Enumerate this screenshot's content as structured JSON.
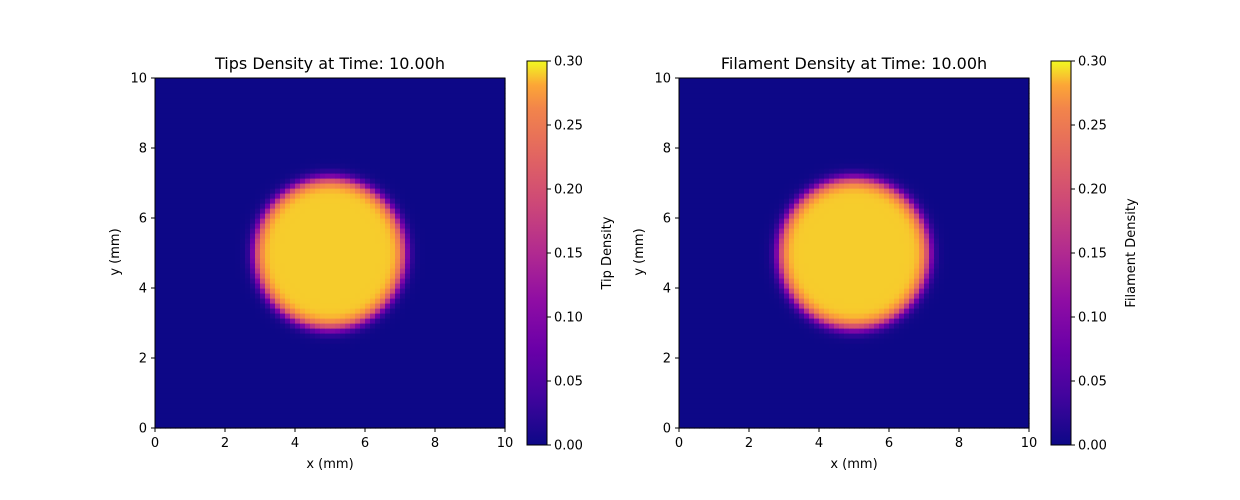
{
  "chart_data": [
    {
      "type": "heatmap",
      "title": "Tips Density at Time: 10.00h",
      "xlabel": "x (mm)",
      "ylabel": "y (mm)",
      "xlim": [
        0,
        10
      ],
      "ylim": [
        0,
        10
      ],
      "xticks": [
        "0",
        "2",
        "4",
        "6",
        "8",
        "10"
      ],
      "yticks": [
        "0",
        "2",
        "4",
        "6",
        "8",
        "10"
      ],
      "colormap": "plasma",
      "field": {
        "shape": "disk",
        "center": [
          5,
          5
        ],
        "radius": 2.15,
        "edge_width": 0.22,
        "inside_value": 0.29,
        "background_value": 0.0
      },
      "colorbar": {
        "label": "Tip Density",
        "range": [
          0,
          0.3
        ],
        "ticks": [
          "0.00",
          "0.05",
          "0.10",
          "0.15",
          "0.20",
          "0.25",
          "0.30"
        ]
      }
    },
    {
      "type": "heatmap",
      "title": "Filament Density at Time: 10.00h",
      "xlabel": "x (mm)",
      "ylabel": "y (mm)",
      "xlim": [
        0,
        10
      ],
      "ylim": [
        0,
        10
      ],
      "xticks": [
        "0",
        "2",
        "4",
        "6",
        "8",
        "10"
      ],
      "yticks": [
        "0",
        "2",
        "4",
        "6",
        "8",
        "10"
      ],
      "colormap": "plasma",
      "field": {
        "shape": "disk",
        "center": [
          5,
          5
        ],
        "radius": 2.15,
        "edge_width": 0.22,
        "inside_value": 0.29,
        "background_value": 0.0
      },
      "colorbar": {
        "label": "Filament Density",
        "range": [
          0,
          0.3
        ],
        "ticks": [
          "0.00",
          "0.05",
          "0.10",
          "0.15",
          "0.20",
          "0.25",
          "0.30"
        ]
      }
    }
  ]
}
